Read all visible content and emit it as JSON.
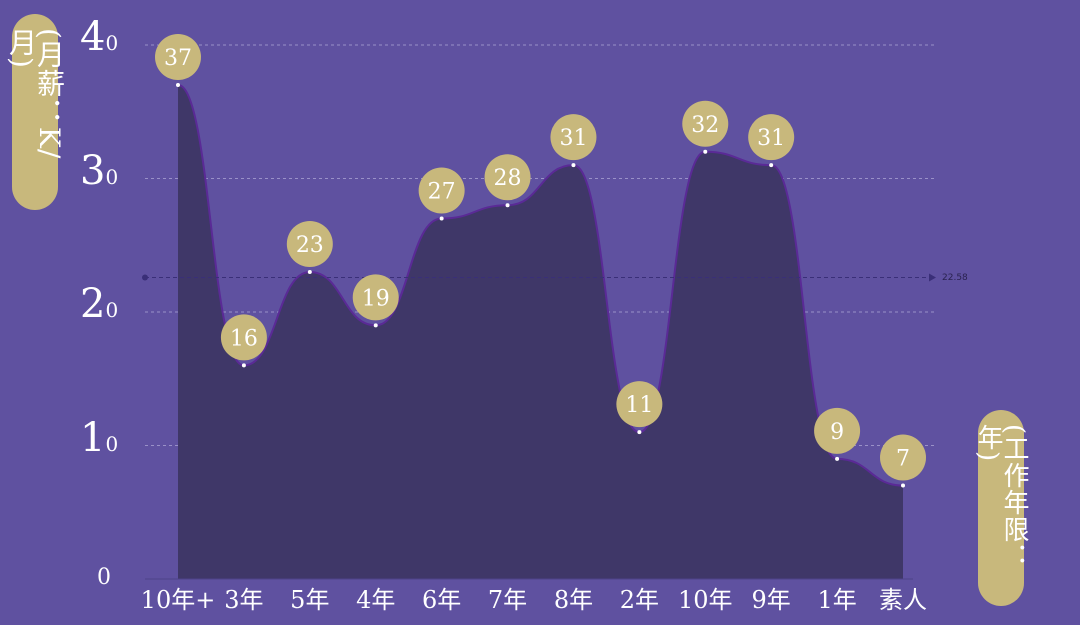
{
  "chart_data": {
    "type": "area",
    "title": "",
    "ylabel": "(月薪：K/月)",
    "xlabel": "(工作年限：年)",
    "categories": [
      "10年+",
      "3年",
      "5年",
      "4年",
      "6年",
      "7年",
      "8年",
      "2年",
      "10年",
      "9年",
      "1年",
      "素人"
    ],
    "values": [
      37,
      16,
      23,
      19,
      27,
      28,
      31,
      11,
      32,
      31,
      9,
      7
    ],
    "ylim": [
      0,
      40
    ],
    "yticks": [
      {
        "value": 0,
        "label_main": "0",
        "label_sub": ""
      },
      {
        "value": 10,
        "label_main": "1",
        "label_sub": "0"
      },
      {
        "value": 20,
        "label_main": "2",
        "label_sub": "0"
      },
      {
        "value": 30,
        "label_main": "3",
        "label_sub": "0"
      },
      {
        "value": 40,
        "label_main": "4",
        "label_sub": "0"
      }
    ],
    "average": 22.58,
    "average_label": "22.58",
    "grid": true,
    "colors": {
      "background": "#5f51a0",
      "area_fill": "#3f3768",
      "line": "#5a2a96",
      "badge": "#c8b87c",
      "gridline": "#9a91c8",
      "average_line": "#3a2f78"
    }
  }
}
